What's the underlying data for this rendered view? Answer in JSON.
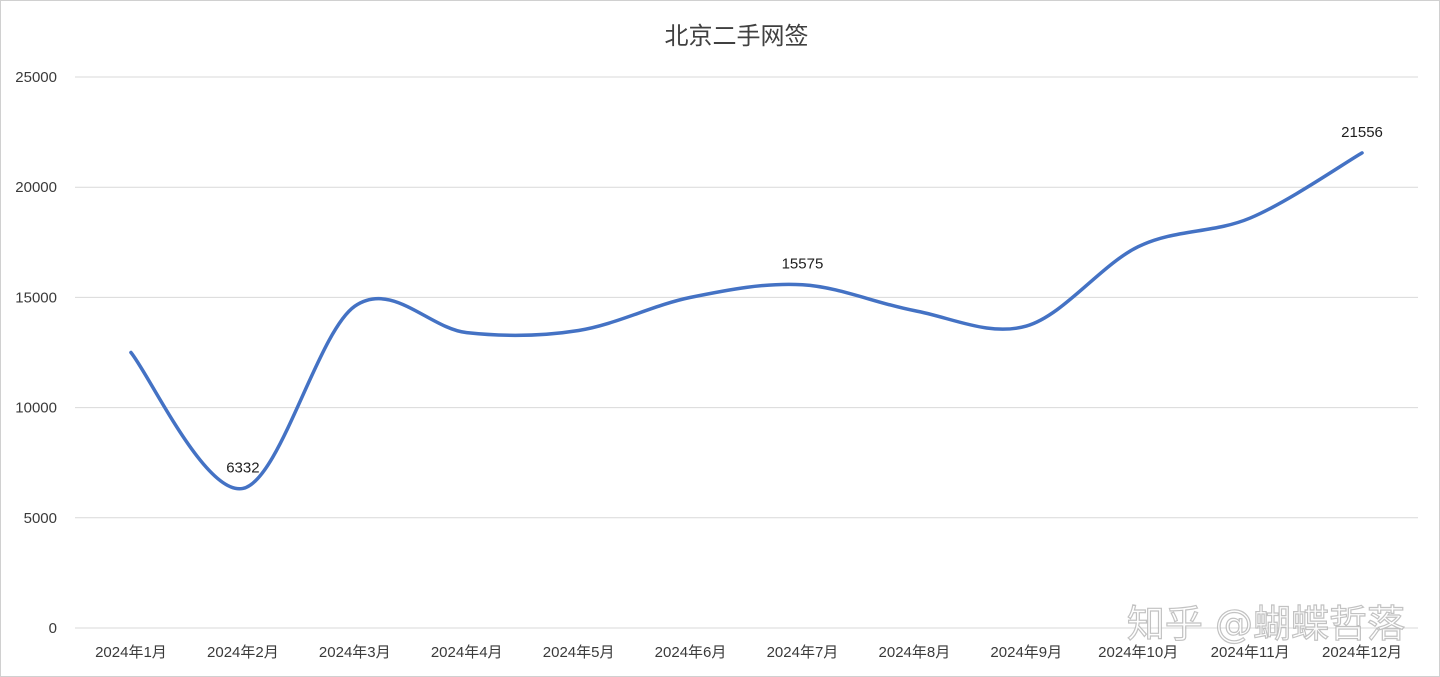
{
  "chart_data": {
    "type": "line",
    "title": "北京二手网签",
    "categories": [
      "2024年1月",
      "2024年2月",
      "2024年3月",
      "2024年4月",
      "2024年5月",
      "2024年6月",
      "2024年7月",
      "2024年8月",
      "2024年9月",
      "2024年10月",
      "2024年11月",
      "2024年12月"
    ],
    "series": [
      {
        "values": [
          12500,
          6332,
          14600,
          13400,
          13500,
          15000,
          15575,
          14400,
          13700,
          17300,
          18600,
          21556
        ],
        "color": "#4472c4",
        "smooth": true
      }
    ],
    "data_labels": [
      {
        "index": 1,
        "text": "6332"
      },
      {
        "index": 6,
        "text": "15575"
      },
      {
        "index": 11,
        "text": "21556"
      }
    ],
    "ylim": [
      0,
      25000
    ],
    "yticks": [
      "0",
      "5000",
      "10000",
      "15000",
      "20000",
      "25000"
    ],
    "xlabel": "",
    "ylabel": "",
    "grid": true,
    "legend": "none"
  },
  "watermark": "知乎 @蝴蝶哲落"
}
